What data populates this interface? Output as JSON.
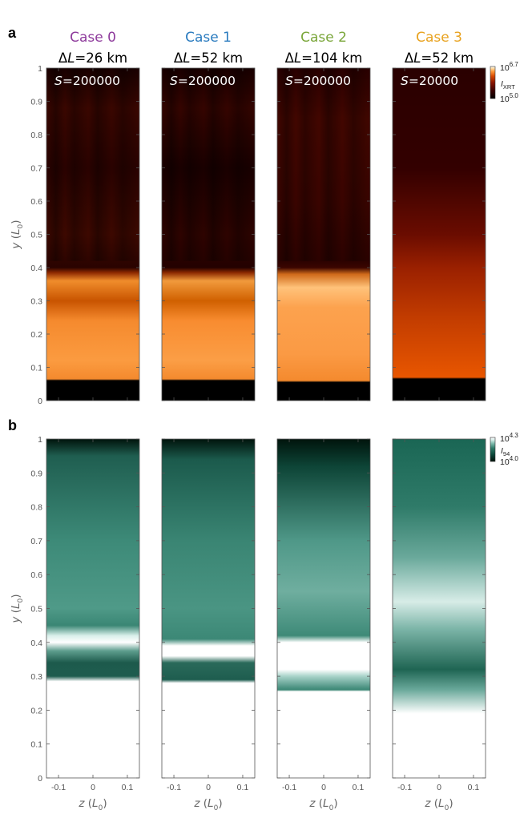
{
  "figure": {
    "panels": [
      {
        "letter": "a",
        "colorbar": {
          "base": "10",
          "max_exp": "6.7",
          "min_exp": "5.0",
          "label_main": "I",
          "label_sub": "XRT",
          "colormap": [
            "#000000",
            "#3a0000",
            "#8a1400",
            "#d84a00",
            "#ff9a3c",
            "#ffe2b0",
            "#ffffff"
          ]
        },
        "yaxis": {
          "label": "y",
          "unit": "L",
          "unit_sub": "0"
        }
      },
      {
        "letter": "b",
        "colorbar": {
          "base": "10",
          "max_exp": "4.3",
          "min_exp": "4.0",
          "label_main": "I",
          "label_sub": "94",
          "colormap": [
            "#001008",
            "#0c4a3c",
            "#2e7a68",
            "#7fbcae",
            "#d8efea",
            "#ffffff"
          ]
        },
        "yaxis": {
          "label": "y",
          "unit": "L",
          "unit_sub": "0"
        }
      }
    ],
    "cases": [
      {
        "title": "Case 0",
        "title_color": "#8e3b9c",
        "delta_L_symbol": "Δ",
        "delta_L_var": "L",
        "delta_L_value": "=26  km",
        "S_var": "S",
        "S_value": "=200000"
      },
      {
        "title": "Case 1",
        "title_color": "#2a7bbf",
        "delta_L_symbol": "Δ",
        "delta_L_var": "L",
        "delta_L_value": "=52  km",
        "S_var": "S",
        "S_value": "=200000"
      },
      {
        "title": "Case 2",
        "title_color": "#7aa63a",
        "delta_L_symbol": "Δ",
        "delta_L_var": "L",
        "delta_L_value": "=104  km",
        "S_var": "S",
        "S_value": "=200000"
      },
      {
        "title": "Case 3",
        "title_color": "#e8a21f",
        "delta_L_symbol": "Δ",
        "delta_L_var": "L",
        "delta_L_value": "=52  km",
        "S_var": "S",
        "S_value": "=20000"
      }
    ],
    "y_ticks": [
      "0",
      "0.1",
      "0.2",
      "0.3",
      "0.4",
      "0.5",
      "0.6",
      "0.7",
      "0.8",
      "0.9",
      "1"
    ],
    "x_ticks": [
      "-0.1",
      "0",
      "0.1"
    ],
    "xaxis": {
      "label": "z",
      "unit": "L",
      "unit_sub": "0"
    }
  }
}
